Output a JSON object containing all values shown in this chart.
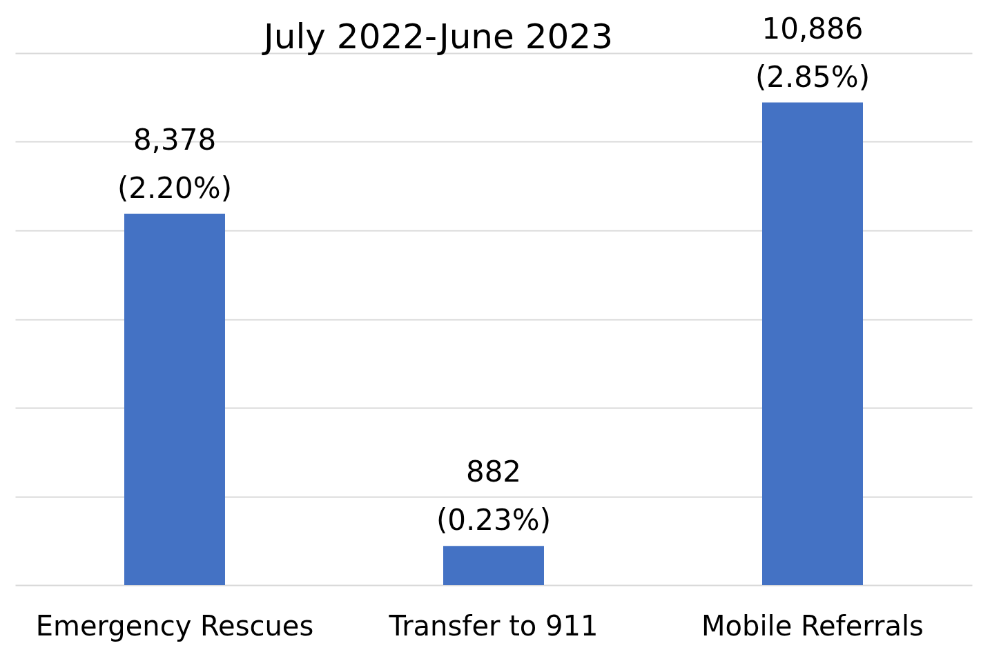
{
  "chart_data": {
    "type": "bar",
    "title": "July 2022-June 2023",
    "categories": [
      "Emergency Rescues",
      "Transfer to 911",
      "Mobile Referrals"
    ],
    "values": [
      8378,
      882,
      10886
    ],
    "color": "#4472c4",
    "value_labels": [
      "8,378\n(2.20%)",
      "882\n(0.23%)",
      "10,886\n(2.85%)"
    ],
    "ylim": [
      0,
      12000
    ],
    "yticks": [
      {
        "value": 0,
        "label": null
      },
      {
        "value": 2000,
        "label": null
      },
      {
        "value": 4000,
        "label": null
      },
      {
        "value": 6000,
        "label": null
      },
      {
        "value": 8000,
        "label": null
      },
      {
        "value": 10000,
        "label": null
      },
      {
        "value": 12000,
        "label": null
      }
    ],
    "grid": "y",
    "tick_labels": "x"
  }
}
